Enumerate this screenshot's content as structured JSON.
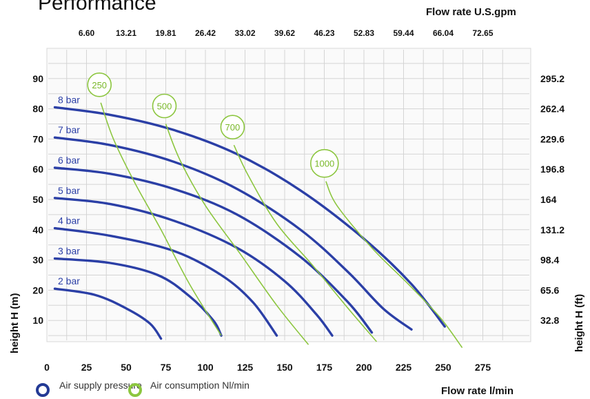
{
  "chart_data": {
    "type": "line",
    "title": "Performance",
    "colors": {
      "pressure": "#2b3fa6",
      "air": "#8cc63f",
      "grid": "#cfcfcf",
      "plot_bg": "#fafafa"
    },
    "x_bottom": {
      "label": "Flow rate  l/min",
      "lim": [
        0,
        290
      ],
      "ticks": [
        0,
        25,
        50,
        75,
        100,
        125,
        150,
        175,
        200,
        225,
        250,
        275
      ]
    },
    "x_top": {
      "label": "Flow rate U.S.gpm",
      "ticks": [
        "6.60",
        "13.21",
        "19.81",
        "26.42",
        "33.02",
        "39.62",
        "46.23",
        "52.83",
        "59.44",
        "66.04",
        "72.65"
      ]
    },
    "y_left": {
      "label": "height  H (m)",
      "lim": [
        0,
        100
      ],
      "ticks": [
        10,
        20,
        30,
        40,
        50,
        60,
        70,
        80,
        90
      ]
    },
    "y_right": {
      "label": "height  H (ft)",
      "ticks": [
        "32.8",
        "65.6",
        "98.4",
        "131.2",
        "164",
        "196.8",
        "229.6",
        "262.4",
        "295.2"
      ]
    },
    "pressure_series": [
      {
        "name": "8 bar",
        "x": [
          5,
          40,
          80,
          120,
          160,
          200,
          230,
          251
        ],
        "y": [
          80.5,
          78,
          73,
          65,
          53,
          37,
          22,
          8
        ]
      },
      {
        "name": "7 bar",
        "x": [
          5,
          40,
          80,
          120,
          160,
          190,
          212,
          230
        ],
        "y": [
          70.5,
          68,
          62.5,
          53.5,
          40,
          26,
          14,
          7
        ]
      },
      {
        "name": "6 bar",
        "x": [
          5,
          40,
          80,
          120,
          160,
          190,
          205
        ],
        "y": [
          60.5,
          58.5,
          53.5,
          45,
          31,
          16,
          6
        ]
      },
      {
        "name": "5 bar",
        "x": [
          5,
          40,
          80,
          120,
          150,
          170,
          180
        ],
        "y": [
          50.5,
          48.5,
          43,
          34,
          23,
          12,
          5
        ]
      },
      {
        "name": "4 bar",
        "x": [
          5,
          40,
          80,
          110,
          130,
          145
        ],
        "y": [
          40.5,
          38,
          33,
          25,
          16,
          5
        ]
      },
      {
        "name": "3 bar",
        "x": [
          5,
          40,
          70,
          90,
          105,
          110
        ],
        "y": [
          30.5,
          29,
          25,
          18,
          10,
          5
        ]
      },
      {
        "name": "2 bar",
        "x": [
          5,
          30,
          50,
          65,
          72
        ],
        "y": [
          20.5,
          18.5,
          14,
          9,
          4
        ]
      }
    ],
    "air_series": [
      {
        "name": "250",
        "x": [
          34,
          42,
          56,
          72,
          90,
          110
        ],
        "y": [
          82,
          70,
          55,
          40,
          22,
          5
        ]
      },
      {
        "name": "500",
        "x": [
          75,
          84,
          100,
          122,
          145,
          165
        ],
        "y": [
          75,
          63,
          48,
          32,
          15,
          2
        ]
      },
      {
        "name": "700",
        "x": [
          118,
          127,
          145,
          168,
          190,
          208
        ],
        "y": [
          68,
          58,
          42,
          28,
          14,
          3
        ]
      },
      {
        "name": "1000",
        "x": [
          176,
          183,
          205,
          228,
          248,
          262
        ],
        "y": [
          56,
          48,
          34,
          22,
          11,
          1
        ]
      }
    ]
  },
  "legend": {
    "pressure_label": "Air supply pressure",
    "air_label": "Air consumption Nl/min"
  }
}
